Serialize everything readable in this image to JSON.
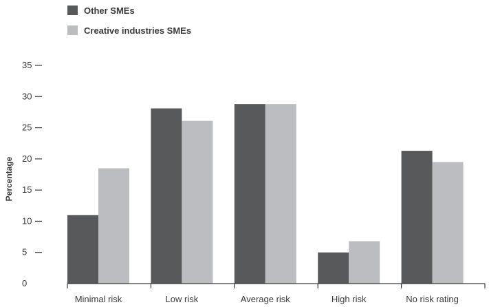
{
  "chart_data": {
    "type": "bar",
    "title": "",
    "xlabel": "",
    "ylabel": "Percentage",
    "ylim": [
      0,
      35
    ],
    "yticks": [
      0,
      5,
      10,
      15,
      20,
      25,
      30,
      35
    ],
    "grid": false,
    "legend_position": "top-left",
    "categories": [
      "Minimal risk",
      "Low risk",
      "Average risk",
      "High risk",
      "No risk rating"
    ],
    "series": [
      {
        "name": "Other SMEs",
        "color": "#58595b",
        "values": [
          11,
          28.1,
          28.8,
          5,
          21.3
        ]
      },
      {
        "name": "Creative industries SMEs",
        "color": "#bcbdc0",
        "values": [
          18.5,
          26.1,
          28.8,
          6.8,
          19.5
        ]
      }
    ]
  }
}
